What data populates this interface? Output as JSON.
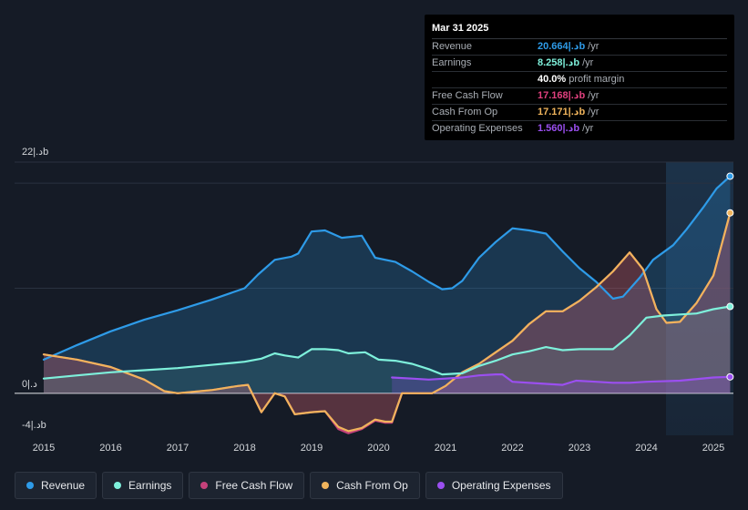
{
  "tooltip": {
    "date": "Mar 31 2025",
    "rows": [
      {
        "name": "Revenue",
        "value": "20.664|.دb",
        "unit": "/yr",
        "color": "#2e9be8"
      },
      {
        "name": "Earnings",
        "value": "8.258|.دb",
        "unit": "/yr",
        "color": "#7ef0db"
      },
      {
        "name": "",
        "value": "40.0%",
        "unit": "profit margin",
        "color": "#ffffff"
      },
      {
        "name": "Free Cash Flow",
        "value": "17.168|.دb",
        "unit": "/yr",
        "color": "#e0407e"
      },
      {
        "name": "Cash From Op",
        "value": "17.171|.دb",
        "unit": "/yr",
        "color": "#f0b45c"
      },
      {
        "name": "Operating Expenses",
        "value": "1.560|.دb",
        "unit": "/yr",
        "color": "#9b4ff0"
      }
    ]
  },
  "legend": [
    {
      "label": "Revenue",
      "color": "#2e9be8"
    },
    {
      "label": "Earnings",
      "color": "#7ef0db"
    },
    {
      "label": "Free Cash Flow",
      "color": "#c4417a"
    },
    {
      "label": "Cash From Op",
      "color": "#f0b45c"
    },
    {
      "label": "Operating Expenses",
      "color": "#9b4ff0"
    }
  ],
  "chart_data": {
    "type": "area",
    "title": "",
    "xlabel": "",
    "ylabel": "",
    "ylim": [
      -4,
      22
    ],
    "y_tick_labels": [
      "22|.دb",
      "0|.د",
      "-4|.دb"
    ],
    "x_tick_labels": [
      "2015",
      "2016",
      "2017",
      "2018",
      "2019",
      "2020",
      "2021",
      "2022",
      "2023",
      "2024",
      "2025"
    ],
    "series": [
      {
        "name": "Revenue",
        "color": "#2e9be8",
        "points": [
          [
            2015.0,
            3.2
          ],
          [
            2015.5,
            4.6
          ],
          [
            2016.0,
            5.9
          ],
          [
            2016.5,
            7.0
          ],
          [
            2017.0,
            7.9
          ],
          [
            2017.5,
            8.9
          ],
          [
            2018.0,
            10.0
          ],
          [
            2018.2,
            11.3
          ],
          [
            2018.45,
            12.7
          ],
          [
            2018.7,
            13.0
          ],
          [
            2018.8,
            13.3
          ],
          [
            2019.0,
            15.4
          ],
          [
            2019.2,
            15.5
          ],
          [
            2019.45,
            14.8
          ],
          [
            2019.75,
            15.0
          ],
          [
            2019.95,
            12.9
          ],
          [
            2020.25,
            12.5
          ],
          [
            2020.5,
            11.6
          ],
          [
            2020.75,
            10.6
          ],
          [
            2020.95,
            9.9
          ],
          [
            2021.1,
            10.0
          ],
          [
            2021.25,
            10.7
          ],
          [
            2021.5,
            12.9
          ],
          [
            2021.75,
            14.4
          ],
          [
            2022.0,
            15.7
          ],
          [
            2022.25,
            15.5
          ],
          [
            2022.5,
            15.2
          ],
          [
            2022.75,
            13.5
          ],
          [
            2023.0,
            11.9
          ],
          [
            2023.25,
            10.6
          ],
          [
            2023.5,
            9.0
          ],
          [
            2023.65,
            9.2
          ],
          [
            2023.9,
            11.0
          ],
          [
            2024.1,
            12.7
          ],
          [
            2024.4,
            14.1
          ],
          [
            2024.6,
            15.6
          ],
          [
            2024.85,
            17.7
          ],
          [
            2025.05,
            19.5
          ],
          [
            2025.25,
            20.66
          ]
        ]
      },
      {
        "name": "Earnings",
        "color": "#7ef0db",
        "points": [
          [
            2015.0,
            1.4
          ],
          [
            2015.5,
            1.7
          ],
          [
            2016.0,
            2.0
          ],
          [
            2016.5,
            2.2
          ],
          [
            2017.0,
            2.4
          ],
          [
            2017.5,
            2.7
          ],
          [
            2018.0,
            3.0
          ],
          [
            2018.25,
            3.3
          ],
          [
            2018.45,
            3.8
          ],
          [
            2018.6,
            3.6
          ],
          [
            2018.8,
            3.4
          ],
          [
            2019.0,
            4.2
          ],
          [
            2019.2,
            4.2
          ],
          [
            2019.4,
            4.1
          ],
          [
            2019.55,
            3.8
          ],
          [
            2019.8,
            3.9
          ],
          [
            2020.0,
            3.2
          ],
          [
            2020.25,
            3.1
          ],
          [
            2020.5,
            2.8
          ],
          [
            2020.75,
            2.3
          ],
          [
            2020.95,
            1.8
          ],
          [
            2021.25,
            1.9
          ],
          [
            2021.5,
            2.6
          ],
          [
            2021.75,
            3.1
          ],
          [
            2022.0,
            3.7
          ],
          [
            2022.25,
            4.0
          ],
          [
            2022.5,
            4.4
          ],
          [
            2022.75,
            4.1
          ],
          [
            2023.0,
            4.2
          ],
          [
            2023.25,
            4.2
          ],
          [
            2023.5,
            4.2
          ],
          [
            2023.75,
            5.5
          ],
          [
            2024.0,
            7.2
          ],
          [
            2024.25,
            7.4
          ],
          [
            2024.5,
            7.5
          ],
          [
            2024.75,
            7.6
          ],
          [
            2025.0,
            8.0
          ],
          [
            2025.25,
            8.26
          ]
        ]
      },
      {
        "name": "Free Cash Flow",
        "color": "#c4417a",
        "points": [
          [
            2015.0,
            3.7
          ],
          [
            2015.5,
            3.2
          ],
          [
            2016.0,
            2.5
          ],
          [
            2016.5,
            1.3
          ],
          [
            2016.8,
            0.2
          ],
          [
            2017.0,
            0.0
          ],
          [
            2017.5,
            0.3
          ],
          [
            2017.9,
            0.7
          ],
          [
            2018.05,
            0.8
          ],
          [
            2018.25,
            -1.8
          ],
          [
            2018.45,
            0.0
          ],
          [
            2018.6,
            -0.3
          ],
          [
            2018.75,
            -2.0
          ],
          [
            2019.0,
            -1.8
          ],
          [
            2019.2,
            -1.7
          ],
          [
            2019.4,
            -3.4
          ],
          [
            2019.55,
            -3.8
          ],
          [
            2019.75,
            -3.4
          ],
          [
            2019.95,
            -2.6
          ],
          [
            2020.1,
            -2.8
          ],
          [
            2020.2,
            -2.8
          ],
          [
            2020.35,
            0.0
          ],
          [
            2020.6,
            0.0
          ],
          [
            2020.8,
            0.0
          ],
          [
            2021.0,
            0.7
          ],
          [
            2021.25,
            2.0
          ],
          [
            2021.5,
            2.8
          ],
          [
            2021.75,
            3.9
          ],
          [
            2022.0,
            5.0
          ],
          [
            2022.25,
            6.6
          ],
          [
            2022.5,
            7.8
          ],
          [
            2022.75,
            7.8
          ],
          [
            2023.0,
            8.8
          ],
          [
            2023.25,
            10.1
          ],
          [
            2023.5,
            11.6
          ],
          [
            2023.75,
            13.4
          ],
          [
            2023.95,
            11.8
          ],
          [
            2024.15,
            8.0
          ],
          [
            2024.3,
            6.7
          ],
          [
            2024.5,
            6.8
          ],
          [
            2024.75,
            8.6
          ],
          [
            2025.0,
            11.2
          ],
          [
            2025.25,
            17.17
          ]
        ]
      },
      {
        "name": "Cash From Op",
        "color": "#f0b45c",
        "points": [
          [
            2015.0,
            3.7
          ],
          [
            2015.5,
            3.2
          ],
          [
            2016.0,
            2.5
          ],
          [
            2016.5,
            1.3
          ],
          [
            2016.8,
            0.2
          ],
          [
            2017.0,
            0.0
          ],
          [
            2017.5,
            0.3
          ],
          [
            2017.9,
            0.7
          ],
          [
            2018.05,
            0.8
          ],
          [
            2018.25,
            -1.8
          ],
          [
            2018.45,
            0.0
          ],
          [
            2018.6,
            -0.3
          ],
          [
            2018.75,
            -2.0
          ],
          [
            2019.0,
            -1.8
          ],
          [
            2019.2,
            -1.7
          ],
          [
            2019.4,
            -3.2
          ],
          [
            2019.55,
            -3.6
          ],
          [
            2019.75,
            -3.3
          ],
          [
            2019.95,
            -2.5
          ],
          [
            2020.1,
            -2.7
          ],
          [
            2020.2,
            -2.7
          ],
          [
            2020.35,
            0.0
          ],
          [
            2020.6,
            0.0
          ],
          [
            2020.8,
            0.0
          ],
          [
            2021.0,
            0.7
          ],
          [
            2021.25,
            2.0
          ],
          [
            2021.5,
            2.8
          ],
          [
            2021.75,
            3.9
          ],
          [
            2022.0,
            5.0
          ],
          [
            2022.25,
            6.6
          ],
          [
            2022.5,
            7.8
          ],
          [
            2022.75,
            7.8
          ],
          [
            2023.0,
            8.8
          ],
          [
            2023.25,
            10.1
          ],
          [
            2023.5,
            11.6
          ],
          [
            2023.75,
            13.4
          ],
          [
            2023.95,
            11.8
          ],
          [
            2024.15,
            8.0
          ],
          [
            2024.3,
            6.7
          ],
          [
            2024.5,
            6.8
          ],
          [
            2024.75,
            8.6
          ],
          [
            2025.0,
            11.2
          ],
          [
            2025.25,
            17.17
          ]
        ]
      },
      {
        "name": "Operating Expenses",
        "color": "#9b4ff0",
        "points": [
          [
            2020.2,
            1.5
          ],
          [
            2020.5,
            1.4
          ],
          [
            2020.75,
            1.3
          ],
          [
            2021.0,
            1.4
          ],
          [
            2021.25,
            1.5
          ],
          [
            2021.5,
            1.7
          ],
          [
            2021.75,
            1.8
          ],
          [
            2021.85,
            1.8
          ],
          [
            2022.0,
            1.1
          ],
          [
            2022.5,
            0.9
          ],
          [
            2022.75,
            0.8
          ],
          [
            2022.95,
            1.2
          ],
          [
            2023.25,
            1.1
          ],
          [
            2023.5,
            1.0
          ],
          [
            2023.75,
            1.0
          ],
          [
            2024.0,
            1.1
          ],
          [
            2024.5,
            1.2
          ],
          [
            2025.0,
            1.5
          ],
          [
            2025.25,
            1.56
          ]
        ]
      }
    ]
  }
}
